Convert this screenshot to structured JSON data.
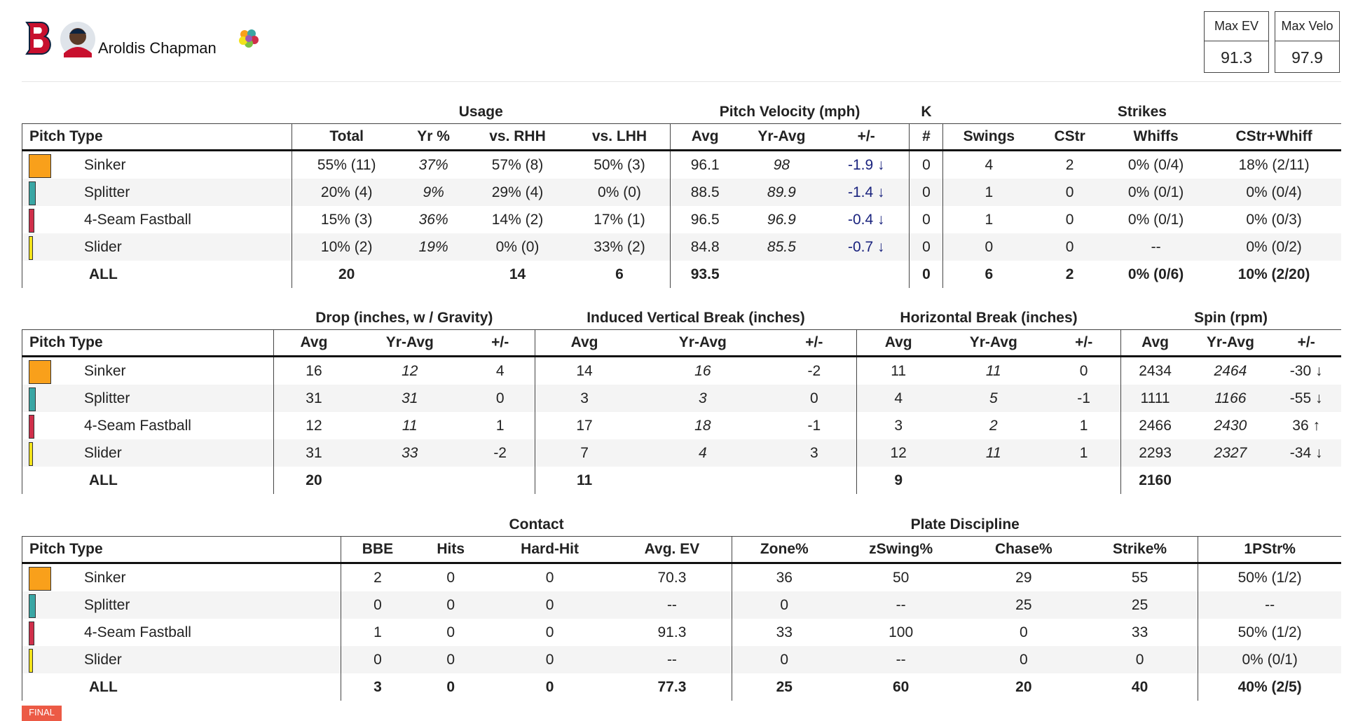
{
  "header": {
    "player_name": "Aroldis Chapman"
  },
  "summary": [
    {
      "label": "Max EV",
      "value": "91.3"
    },
    {
      "label": "Max Velo",
      "value": "97.9"
    }
  ],
  "pitch_colors": [
    "#f9a01b",
    "#3aa6a4",
    "#cf2f4a",
    "#f2e21a"
  ],
  "tables": [
    {
      "groups": [
        {
          "label": null,
          "span": 1
        },
        {
          "label": "Usage",
          "span": 4
        },
        {
          "label": "Pitch Velocity (mph)",
          "span": 3
        },
        {
          "label": "K",
          "span": 1
        },
        {
          "label": "Strikes",
          "span": 4
        }
      ],
      "columns": [
        "Pitch Type",
        "Total",
        "Yr %",
        "vs. RHH",
        "vs. LHH",
        "Avg",
        "Yr-Avg",
        "+/-",
        "#",
        "Swings",
        "CStr",
        "Whiffs",
        "CStr+Whiff"
      ],
      "rows": [
        [
          "Sinker",
          "55% (11)",
          "37%",
          "57% (8)",
          "50% (3)",
          "96.1",
          "98",
          "-1.9 ↓",
          "0",
          "4",
          "2",
          "0% (0/4)",
          "18% (2/11)"
        ],
        [
          "Splitter",
          "20% (4)",
          "9%",
          "29% (4)",
          "0% (0)",
          "88.5",
          "89.9",
          "-1.4 ↓",
          "0",
          "1",
          "0",
          "0% (0/1)",
          "0% (0/4)"
        ],
        [
          "4-Seam Fastball",
          "15% (3)",
          "36%",
          "14% (2)",
          "17% (1)",
          "96.5",
          "96.9",
          "-0.4 ↓",
          "0",
          "1",
          "0",
          "0% (0/1)",
          "0% (0/3)"
        ],
        [
          "Slider",
          "10% (2)",
          "19%",
          "0% (0)",
          "33% (2)",
          "84.8",
          "85.5",
          "-0.7 ↓",
          "0",
          "0",
          "0",
          "--",
          "0% (0/2)"
        ],
        [
          "ALL",
          "20",
          null,
          "14",
          "6",
          "93.5",
          null,
          null,
          "0",
          "6",
          "2",
          "0% (0/6)",
          "10% (2/20)"
        ]
      ]
    },
    {
      "groups": [
        {
          "label": null,
          "span": 1
        },
        {
          "label": "Drop (inches, w / Gravity)",
          "span": 3
        },
        {
          "label": "Induced Vertical Break (inches)",
          "span": 3
        },
        {
          "label": "Horizontal Break (inches)",
          "span": 3
        },
        {
          "label": "Spin (rpm)",
          "span": 3
        }
      ],
      "columns": [
        "Pitch Type",
        "Avg",
        "Yr-Avg",
        "+/-",
        "Avg",
        "Yr-Avg",
        "+/-",
        "Avg",
        "Yr-Avg",
        "+/-",
        "Avg",
        "Yr-Avg",
        "+/-"
      ],
      "rows": [
        [
          "Sinker",
          "16",
          "12",
          "4",
          "14",
          "16",
          "-2",
          "11",
          "11",
          "0",
          "2434",
          "2464",
          "-30 ↓"
        ],
        [
          "Splitter",
          "31",
          "31",
          "0",
          "3",
          "3",
          "0",
          "4",
          "5",
          "-1",
          "1111",
          "1166",
          "-55 ↓"
        ],
        [
          "4-Seam Fastball",
          "12",
          "11",
          "1",
          "17",
          "18",
          "-1",
          "3",
          "2",
          "1",
          "2466",
          "2430",
          "36 ↑"
        ],
        [
          "Slider",
          "31",
          "33",
          "-2",
          "7",
          "4",
          "3",
          "12",
          "11",
          "1",
          "2293",
          "2327",
          "-34 ↓"
        ],
        [
          "ALL",
          "20",
          null,
          null,
          "11",
          null,
          null,
          "9",
          null,
          null,
          "2160",
          null,
          null
        ]
      ]
    },
    {
      "groups": [
        {
          "label": null,
          "span": 1
        },
        {
          "label": "Contact",
          "span": 4
        },
        {
          "label": "Plate Discipline",
          "span": 4
        },
        {
          "label": null,
          "span": 1
        }
      ],
      "columns": [
        "Pitch Type",
        "BBE",
        "Hits",
        "Hard-Hit",
        "Avg. EV",
        "Zone%",
        "zSwing%",
        "Chase%",
        "Strike%",
        "1PStr%"
      ],
      "rows": [
        [
          "Sinker",
          "2",
          "0",
          "0",
          "70.3",
          "36",
          "50",
          "29",
          "55",
          "50% (1/2)"
        ],
        [
          "Splitter",
          "0",
          "0",
          "0",
          "--",
          "0",
          "--",
          "25",
          "25",
          "--"
        ],
        [
          "4-Seam Fastball",
          "1",
          "0",
          "0",
          "91.3",
          "33",
          "100",
          "0",
          "33",
          "50% (1/2)"
        ],
        [
          "Slider",
          "0",
          "0",
          "0",
          "--",
          "0",
          "--",
          "0",
          "0",
          "0% (0/1)"
        ],
        [
          "ALL",
          "3",
          "0",
          "0",
          "77.3",
          "25",
          "60",
          "20",
          "40",
          "40% (2/5)"
        ]
      ]
    }
  ],
  "status": "FINAL"
}
